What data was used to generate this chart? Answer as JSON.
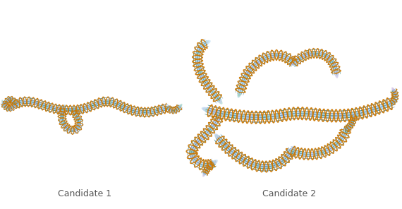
{
  "background_color": "#ffffff",
  "label1": "Candidate 1",
  "label2": "Candidate 2",
  "label_fontsize": 9,
  "label_color": "#555555",
  "figsize": [
    5.7,
    2.96
  ],
  "dpi": 100,
  "orange": "#CC7700",
  "blue": "#7BA7CC",
  "teal": "#3A8A6A",
  "purple": "#8878AA"
}
